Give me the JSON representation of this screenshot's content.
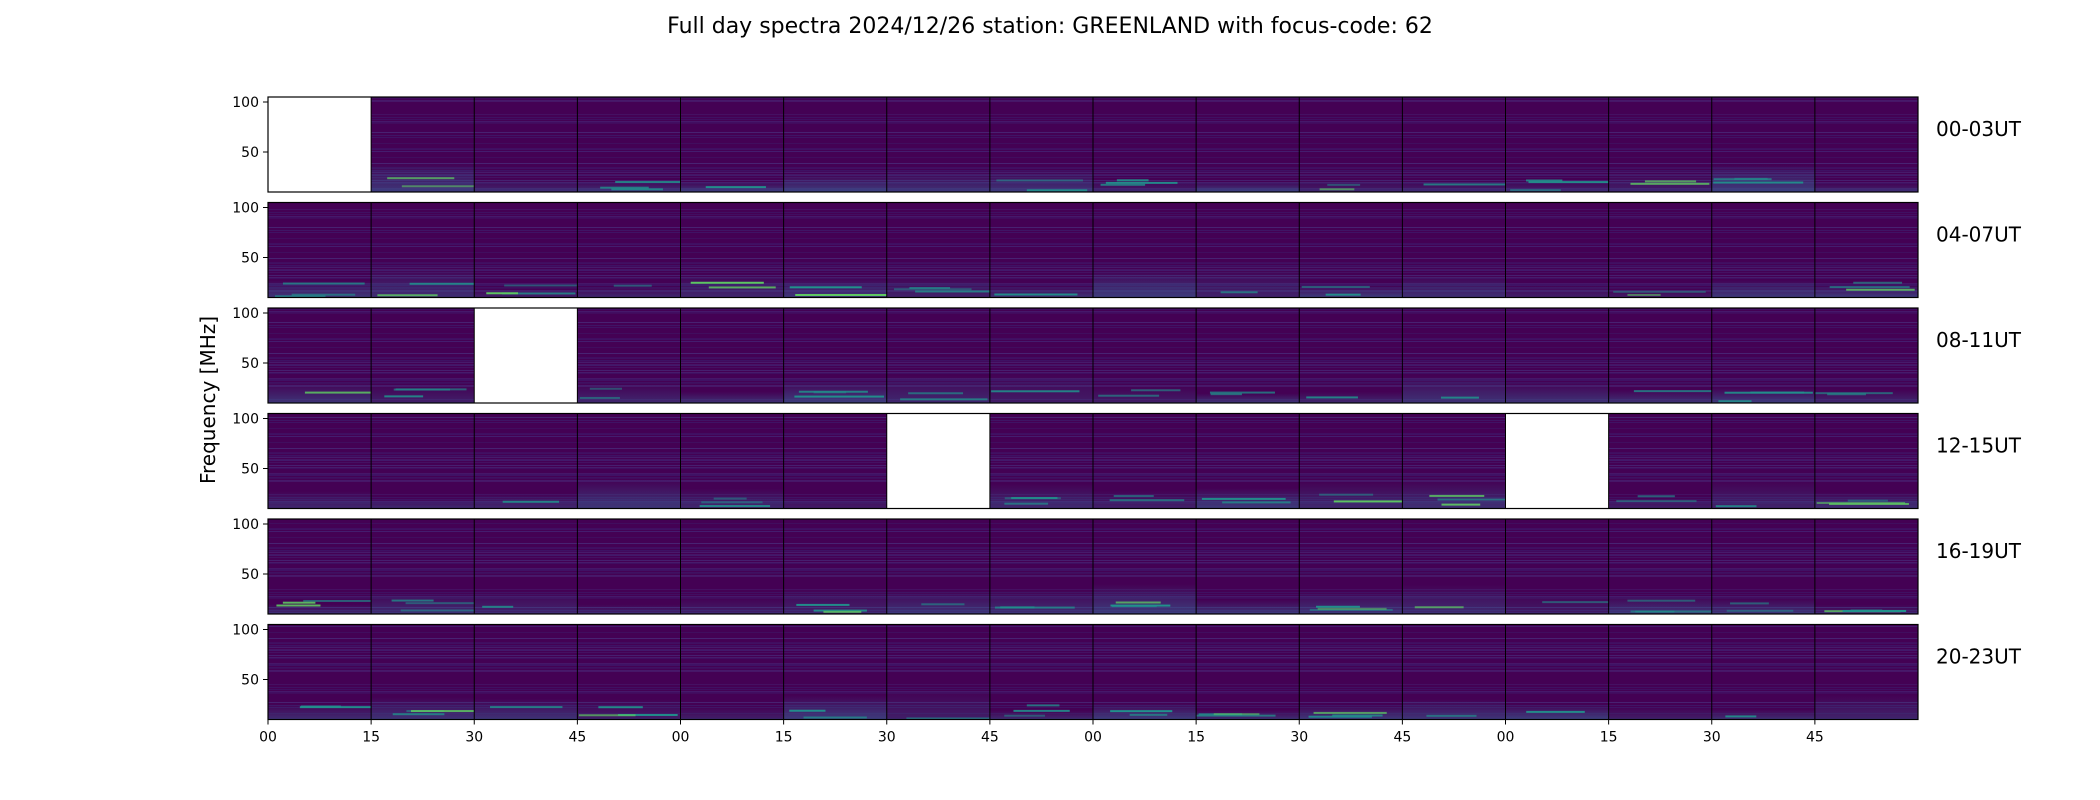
{
  "chart_data": {
    "type": "heatmap",
    "title": "Full day spectra 2024/12/26 station: GREENLAND with focus-code: 62",
    "ylabel": "Frequency [MHz]",
    "xlabel": "",
    "ylim": [
      10,
      105
    ],
    "y_ticks": [
      "100",
      "50"
    ],
    "y_tick_values": [
      100,
      50
    ],
    "x_tick_labels": [
      "00",
      "15",
      "30",
      "45",
      "00",
      "15",
      "30",
      "45",
      "00",
      "15",
      "30",
      "45",
      "00",
      "15",
      "30",
      "45"
    ],
    "panels_per_row": 16,
    "colormap": "viridis",
    "colors": {
      "background": "#440154",
      "mid": "#3b528b",
      "teal": "#21918c",
      "green": "#5ec962",
      "yellow": "#fde725"
    },
    "rows": [
      {
        "label": "00-03UT",
        "missing_panels": [
          0
        ]
      },
      {
        "label": "04-07UT",
        "missing_panels": []
      },
      {
        "label": "08-11UT",
        "missing_panels": [
          2
        ]
      },
      {
        "label": "12-15UT",
        "missing_panels": [
          6,
          12
        ]
      },
      {
        "label": "16-19UT",
        "missing_panels": []
      },
      {
        "label": "20-23UT",
        "missing_panels": []
      }
    ]
  }
}
